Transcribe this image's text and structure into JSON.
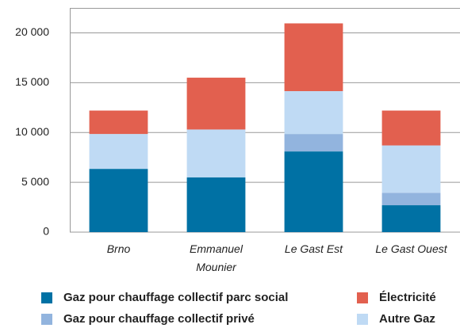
{
  "chart_data": {
    "type": "stacked_bar",
    "categories": [
      "Brno",
      "Emmanuel Mounier",
      "Le Gast Est",
      "Le Gast Ouest"
    ],
    "series": [
      {
        "name": "Gaz pour chauffage collectif parc social",
        "color": "#0071a4",
        "values": [
          6350,
          5500,
          8100,
          2700
        ]
      },
      {
        "name": "Gaz pour chauffage collectif privé",
        "color": "#92b4de",
        "values": [
          0,
          0,
          1750,
          1250
        ]
      },
      {
        "name": "Autre Gaz",
        "color": "#bfdaf4",
        "values": [
          3500,
          4800,
          4300,
          4750
        ]
      },
      {
        "name": "Électricité",
        "color": "#e2604f",
        "values": [
          2350,
          5200,
          6800,
          3500
        ]
      }
    ],
    "ylim": [
      0,
      22500
    ],
    "yticks": [
      0,
      {
        "value": 5000,
        "label": "5 000"
      },
      {
        "value": 10000,
        "label": "10 000"
      },
      {
        "value": 15000,
        "label": "15 000"
      },
      {
        "value": 20000,
        "label": "20 000"
      }
    ],
    "grid": true
  }
}
